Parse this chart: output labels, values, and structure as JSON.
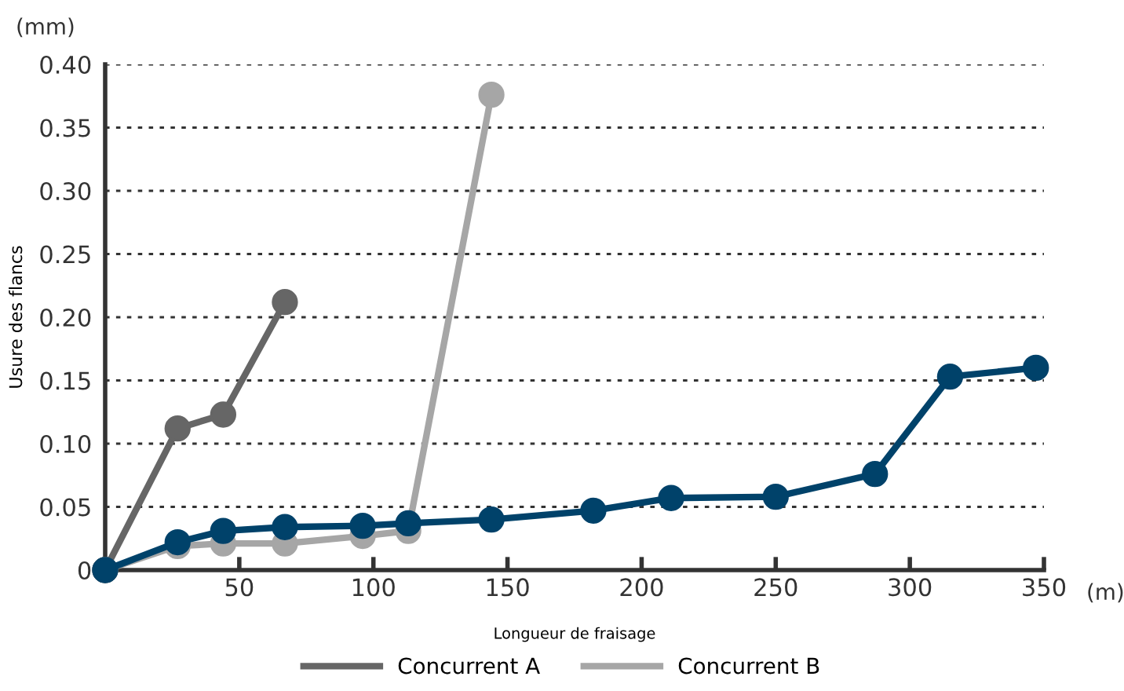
{
  "chart_data": {
    "type": "line",
    "xlabel": "Longueur de fraisage",
    "ylabel": "Usure des flancs",
    "annotations": [
      "(mm)",
      "(m)"
    ],
    "xlim": [
      0,
      350
    ],
    "xticks": [
      50,
      100,
      150,
      200,
      250,
      300,
      350
    ],
    "ylim": [
      0,
      0.4
    ],
    "yticks": [
      {
        "value": 0,
        "label": "0"
      },
      {
        "value": 0.05,
        "label": "0.05"
      },
      {
        "value": 0.1,
        "label": "0.10"
      },
      {
        "value": 0.15,
        "label": "0.15"
      },
      {
        "value": 0.2,
        "label": "0.20"
      },
      {
        "value": 0.25,
        "label": "0.25"
      },
      {
        "value": 0.3,
        "label": "0.30"
      },
      {
        "value": 0.35,
        "label": "0.35"
      },
      {
        "value": 0.4,
        "label": "0.40"
      }
    ],
    "grid": "y",
    "legend": "bottom",
    "marker": "circle",
    "line_style": "solid",
    "series": [
      {
        "color": "#00426a",
        "x": [
          0,
          27,
          44,
          67,
          96,
          113,
          144,
          182,
          211,
          250,
          287,
          315,
          347
        ],
        "values": [
          0,
          0.022,
          0.031,
          0.034,
          0.035,
          0.037,
          0.04,
          0.047,
          0.057,
          0.058,
          0.076,
          0.153,
          0.16
        ]
      },
      {
        "name": "Concurrent A",
        "color": "#666666",
        "x": [
          0,
          27,
          44,
          67
        ],
        "values": [
          0,
          0.112,
          0.123,
          0.212
        ]
      },
      {
        "name": "Concurrent B",
        "color": "#a6a6a6",
        "x": [
          0,
          27,
          44,
          67,
          96,
          113,
          144
        ],
        "values": [
          0,
          0.019,
          0.021,
          0.021,
          0.027,
          0.031,
          0.376
        ]
      }
    ]
  }
}
